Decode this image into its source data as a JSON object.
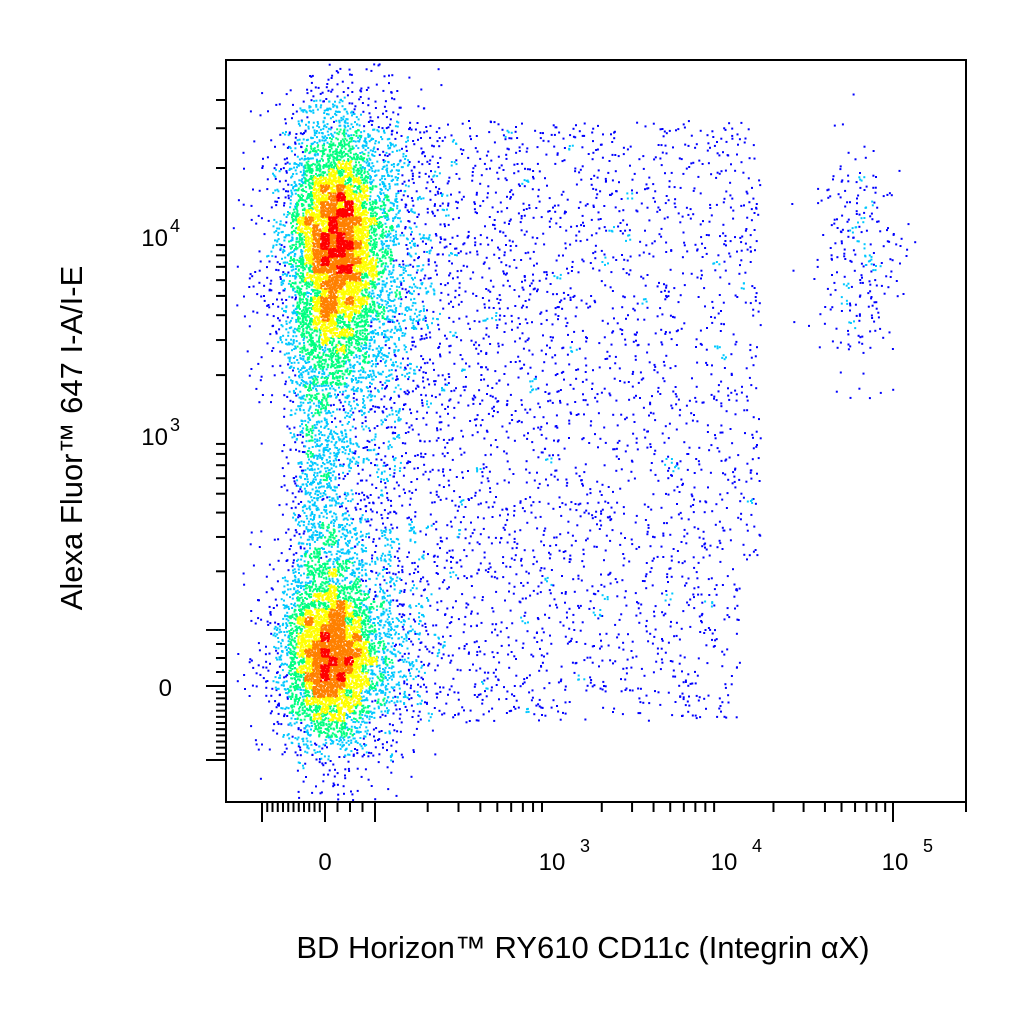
{
  "chart_data": {
    "type": "scatter",
    "xlabel": "BD Horizon™ RY610 CD11c (Integrin αX)",
    "ylabel": "Alexa Fluor™ 647 I-A/I-E",
    "x_scale": "biexponential",
    "y_scale": "biexponential",
    "xlim": [
      -300,
      150000
    ],
    "ylim": [
      -300,
      40000
    ],
    "grid": false,
    "x_ticks": [
      {
        "value": 0,
        "base": "0",
        "exp": ""
      },
      {
        "value": 1000,
        "base": "10",
        "exp": "3"
      },
      {
        "value": 10000,
        "base": "10",
        "exp": "4"
      },
      {
        "value": 100000,
        "base": "10",
        "exp": "5"
      }
    ],
    "y_ticks": [
      {
        "value": 0,
        "base": "0",
        "exp": ""
      },
      {
        "value": 1000,
        "base": "10",
        "exp": "3"
      },
      {
        "value": 10000,
        "base": "10",
        "exp": "4"
      }
    ],
    "density_colormap": [
      "#0000ff",
      "#00c8ff",
      "#00ff80",
      "#ffff00",
      "#ff8000",
      "#ff0000"
    ],
    "populations": [
      {
        "description_visible": false,
        "center": {
          "x": 20,
          "y": 9500
        },
        "spread": "high-density",
        "peak_color": "#ff0000"
      },
      {
        "description_visible": false,
        "center": {
          "x": 10,
          "y": 30
        },
        "spread": "high-density",
        "peak_color": "#ff0000"
      },
      {
        "description_visible": false,
        "center": {
          "x": 25000,
          "y": 8000
        },
        "spread": "sparse",
        "peak_color": "#0000ff"
      }
    ]
  }
}
